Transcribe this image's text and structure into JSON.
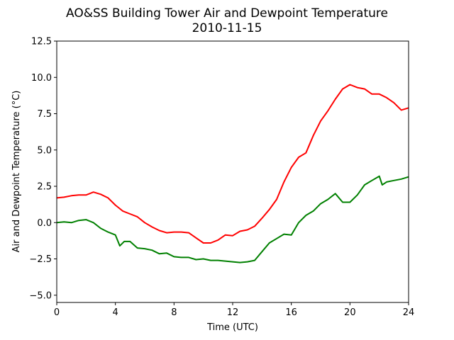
{
  "chart_data": {
    "type": "line",
    "title": "AO&SS Building Tower Air and Dewpoint Temperature",
    "subtitle": "2010-11-15",
    "xlabel": "Time (UTC)",
    "ylabel": "Air and Dewpoint Temperature (°C)",
    "xlim": [
      0,
      24
    ],
    "ylim": [
      -5.5,
      12.5
    ],
    "x_ticks": [
      0,
      4,
      8,
      12,
      16,
      20,
      24
    ],
    "x_tick_labels": [
      "0",
      "4",
      "8",
      "12",
      "16",
      "20",
      "24"
    ],
    "y_ticks": [
      -5.0,
      -2.5,
      0.0,
      2.5,
      5.0,
      7.5,
      10.0,
      12.5
    ],
    "y_tick_labels": [
      "−5.0",
      "−2.5",
      "0.0",
      "2.5",
      "5.0",
      "7.5",
      "10.0",
      "12.5"
    ],
    "grid": false,
    "legend": "none",
    "series": [
      {
        "color": "#ff0000",
        "x": [
          0,
          0.5,
          1,
          1.5,
          2,
          2.5,
          3,
          3.5,
          4,
          4.5,
          5,
          5.5,
          6,
          6.5,
          7,
          7.5,
          8,
          8.5,
          9,
          9.5,
          10,
          10.5,
          11,
          11.5,
          12,
          12.5,
          13,
          13.5,
          14,
          14.5,
          15,
          15.5,
          16,
          16.5,
          17,
          17.5,
          18,
          18.5,
          19,
          19.5,
          20,
          20.5,
          21,
          21.5,
          22,
          22.5,
          23,
          23.5,
          24
        ],
        "y": [
          1.7,
          1.75,
          1.85,
          1.9,
          1.9,
          2.1,
          1.95,
          1.7,
          1.2,
          0.8,
          0.6,
          0.4,
          0.0,
          -0.3,
          -0.55,
          -0.7,
          -0.65,
          -0.65,
          -0.7,
          -1.05,
          -1.4,
          -1.4,
          -1.2,
          -0.85,
          -0.9,
          -0.6,
          -0.5,
          -0.25,
          0.3,
          0.9,
          1.6,
          2.8,
          3.8,
          4.5,
          4.8,
          6.0,
          7.0,
          7.7,
          8.5,
          9.2,
          9.5,
          9.3,
          9.2,
          8.85,
          8.85,
          8.6,
          8.25,
          7.75,
          7.9
        ]
      },
      {
        "color": "#008000",
        "x": [
          0,
          0.5,
          1,
          1.5,
          2,
          2.5,
          3,
          3.5,
          4,
          4.3,
          4.6,
          5,
          5.5,
          6,
          6.5,
          7,
          7.5,
          8,
          8.5,
          9,
          9.5,
          10,
          10.5,
          11,
          11.5,
          12,
          12.5,
          13,
          13.5,
          14,
          14.5,
          15,
          15.5,
          16,
          16.5,
          17,
          17.5,
          18,
          18.5,
          19,
          19.5,
          20,
          20.5,
          21,
          21.5,
          22,
          22.2,
          22.5,
          23,
          23.5,
          24
        ],
        "y": [
          0.0,
          0.05,
          0.0,
          0.15,
          0.2,
          0.0,
          -0.4,
          -0.65,
          -0.85,
          -1.6,
          -1.3,
          -1.3,
          -1.75,
          -1.8,
          -1.9,
          -2.15,
          -2.1,
          -2.35,
          -2.4,
          -2.4,
          -2.55,
          -2.5,
          -2.6,
          -2.6,
          -2.65,
          -2.7,
          -2.75,
          -2.7,
          -2.6,
          -2.0,
          -1.4,
          -1.1,
          -0.8,
          -0.85,
          0.0,
          0.5,
          0.8,
          1.3,
          1.6,
          2.0,
          1.4,
          1.4,
          1.9,
          2.6,
          2.9,
          3.2,
          2.6,
          2.8,
          2.9,
          3.0,
          3.15
        ]
      }
    ]
  }
}
